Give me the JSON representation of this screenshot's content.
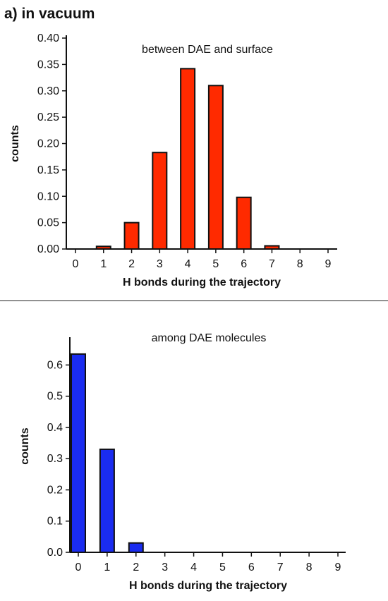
{
  "panel_label": "a) in vacuum",
  "chart_data": [
    {
      "type": "bar",
      "title": "between DAE and surface",
      "xlabel": "H bonds during the trajectory",
      "ylabel": "counts",
      "categories": [
        "0",
        "1",
        "2",
        "3",
        "4",
        "5",
        "6",
        "7",
        "8",
        "9"
      ],
      "values": [
        0.0,
        0.005,
        0.05,
        0.183,
        0.342,
        0.31,
        0.098,
        0.006,
        0.0,
        0.0
      ],
      "ylim": [
        0,
        0.4
      ],
      "yticks": [
        "0.00",
        "0.05",
        "0.10",
        "0.15",
        "0.20",
        "0.25",
        "0.30",
        "0.35",
        "0.40"
      ],
      "bar_color": "#ff2a00",
      "grid": false
    },
    {
      "type": "bar",
      "title": "among DAE molecules",
      "xlabel": "H bonds during the trajectory",
      "ylabel": "counts",
      "categories": [
        "0",
        "1",
        "2",
        "3",
        "4",
        "5",
        "6",
        "7",
        "8",
        "9"
      ],
      "values": [
        0.635,
        0.33,
        0.03,
        0.001,
        0.0,
        0.0,
        0.0,
        0.0,
        0.0,
        0.0
      ],
      "ylim": [
        0,
        0.68
      ],
      "yticks": [
        "0.0",
        "0.1",
        "0.2",
        "0.3",
        "0.4",
        "0.5",
        "0.6"
      ],
      "bar_color": "#1a2cf0",
      "grid": false
    }
  ]
}
